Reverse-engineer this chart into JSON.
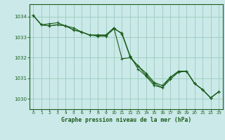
{
  "title": "Graphe pression niveau de la mer (hPa)",
  "background_color": "#cbe9e9",
  "grid_color": "#99ccbb",
  "line_color": "#1a5c1a",
  "xlim": [
    -0.5,
    23.5
  ],
  "ylim": [
    1029.5,
    1034.6
  ],
  "yticks": [
    1030,
    1031,
    1032,
    1033,
    1034
  ],
  "xticks": [
    0,
    1,
    2,
    3,
    4,
    5,
    6,
    7,
    8,
    9,
    10,
    11,
    12,
    13,
    14,
    15,
    16,
    17,
    18,
    19,
    20,
    21,
    22,
    23
  ],
  "series": [
    [
      1034.05,
      1033.6,
      1033.65,
      1033.7,
      1033.55,
      1033.45,
      1033.25,
      1033.1,
      1033.1,
      1033.1,
      1033.45,
      1033.15,
      1032.05,
      1031.6,
      1031.25,
      1030.8,
      1030.65,
      1031.05,
      1031.35,
      1031.35,
      1030.75,
      1030.45,
      1030.05,
      1030.35
    ],
    [
      1034.05,
      1033.6,
      1033.55,
      1033.6,
      1033.55,
      1033.35,
      1033.25,
      1033.1,
      1033.1,
      1033.1,
      1033.45,
      1031.95,
      1032.0,
      1031.6,
      1031.15,
      1030.75,
      1030.55,
      1031.05,
      1031.3,
      1031.35,
      1030.75,
      1030.45,
      1030.05,
      1030.35
    ],
    [
      1034.05,
      1033.6,
      1033.55,
      1033.6,
      1033.55,
      1033.35,
      1033.25,
      1033.1,
      1033.05,
      1033.05,
      1033.4,
      1033.2,
      1032.1,
      1031.45,
      1031.1,
      1030.65,
      1030.55,
      1030.95,
      1031.3,
      1031.35,
      1030.75,
      1030.45,
      1030.05,
      1030.35
    ]
  ]
}
